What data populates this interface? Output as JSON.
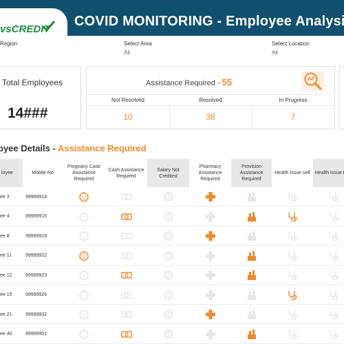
{
  "header": {
    "logo_text": "vsCREDIT",
    "title": "COVID MONITORING - Employee Analysis"
  },
  "filters": [
    {
      "label": "Region",
      "value": ""
    },
    {
      "label": "Select Area",
      "value": "All"
    },
    {
      "label": "Select Location",
      "value": "All"
    }
  ],
  "kpi": {
    "total_label": "Total Employees",
    "total_value": "14###",
    "assist_label": "Assistance Required - ",
    "assist_count": "55",
    "breakdown": [
      {
        "label": "Not Resolved",
        "value": "10"
      },
      {
        "label": "Resolved",
        "value": "38"
      },
      {
        "label": "In Progress",
        "value": "7"
      }
    ]
  },
  "section": {
    "title": "oyee Details - ",
    "accent": "Assistance Required"
  },
  "table": {
    "columns": [
      "loyee",
      "Mobile No",
      "Pregnany Case Assistance Required",
      "Cash Assistance Required",
      "Salary Not Credited",
      "Pharmacy Assistance Required",
      "Provision Assistance Required",
      "Health Issue self",
      "Health Issue Kids"
    ],
    "rows": [
      {
        "employee": "ee 3",
        "mobile": "99999914",
        "pregnancy": true,
        "cash": false,
        "salary": false,
        "pharmacy": true,
        "provision": false,
        "health_self": false,
        "health_kids": false
      },
      {
        "employee": "ee 4",
        "mobile": "99999915",
        "pregnancy": false,
        "cash": true,
        "salary": false,
        "pharmacy": false,
        "provision": true,
        "health_self": true,
        "health_kids": false
      },
      {
        "employee": "ee 8",
        "mobile": "99999919",
        "pregnancy": false,
        "cash": false,
        "salary": false,
        "pharmacy": true,
        "provision": false,
        "health_self": false,
        "health_kids": false
      },
      {
        "employee": "ee 11",
        "mobile": "99999922",
        "pregnancy": true,
        "cash": false,
        "salary": false,
        "pharmacy": false,
        "provision": true,
        "health_self": false,
        "health_kids": false
      },
      {
        "employee": "ee 12",
        "mobile": "99999923",
        "pregnancy": false,
        "cash": true,
        "salary": false,
        "pharmacy": false,
        "provision": true,
        "health_self": false,
        "health_kids": false
      },
      {
        "employee": "ee 15",
        "mobile": "99999926",
        "pregnancy": false,
        "cash": false,
        "salary": false,
        "pharmacy": false,
        "provision": false,
        "health_self": true,
        "health_kids": false
      },
      {
        "employee": "ee 21",
        "mobile": "99999932",
        "pregnancy": false,
        "cash": false,
        "salary": false,
        "pharmacy": true,
        "provision": false,
        "health_self": false,
        "health_kids": false
      },
      {
        "employee": "ee 40",
        "mobile": "99999951",
        "pregnancy": false,
        "cash": true,
        "salary": false,
        "pharmacy": false,
        "provision": true,
        "health_self": false,
        "health_kids": false
      }
    ]
  },
  "icons": {
    "pregnancy": "baby-face-icon",
    "cash": "cash-note-icon",
    "salary": "salary-coin-icon",
    "pharmacy": "pharmacy-cross-icon",
    "provision": "provision-bottles-icon",
    "health_self": "stethoscope-icon",
    "health_kids": "stethoscope-icon",
    "kpi": "magnifier-chart-icon"
  },
  "colors": {
    "header_bg": "#114f6e",
    "accent": "#ee8a2b",
    "inactive": "#e6e6e6",
    "logo": "#1d8a3f"
  }
}
